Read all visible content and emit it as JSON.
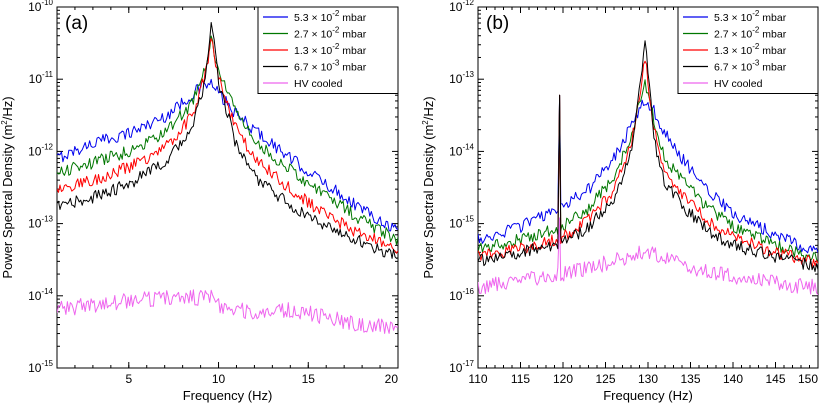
{
  "chart_data": [
    {
      "type": "line",
      "panel_label": "(a)",
      "xlabel": "Frequency (Hz)",
      "ylabel_text": "Power Spectral Density",
      "ylabel_unit": "(m",
      "ylabel_unit_sup": "2",
      "ylabel_unit_tail": "/Hz)",
      "xscale": "linear",
      "yscale": "log",
      "xlim": [
        1,
        20
      ],
      "ylim_exp": [
        -15,
        -10
      ],
      "x_ticks": [
        5,
        10,
        15,
        20
      ],
      "y_ticks_exp": [
        -15,
        -14,
        -13,
        -12,
        -11,
        -10
      ],
      "tick_base": "10",
      "legend_position": "top-right",
      "series": [
        {
          "name": "5.3 × 10^-2 mbar",
          "label_base": "5.3 × 10",
          "label_exp": "-2",
          "label_unit": " mbar",
          "color": "#0000ee",
          "anchors": [
            [
              1,
              8e-13
            ],
            [
              3,
              1.3e-12
            ],
            [
              5,
              1.8e-12
            ],
            [
              7,
              3e-12
            ],
            [
              8.5,
              6e-12
            ],
            [
              9.2,
              8.5e-12
            ],
            [
              9.6,
              8.5e-12
            ],
            [
              10.2,
              5.5e-12
            ],
            [
              11,
              3.2e-12
            ],
            [
              12,
              2e-12
            ],
            [
              14,
              8e-13
            ],
            [
              16,
              3.5e-13
            ],
            [
              18,
              1.6e-13
            ],
            [
              20,
              8e-14
            ]
          ]
        },
        {
          "name": "2.7 × 10^-2 mbar",
          "label_base": "2.7 × 10",
          "label_exp": "-2",
          "label_unit": " mbar",
          "color": "#007700",
          "anchors": [
            [
              1,
              5e-13
            ],
            [
              3,
              7e-13
            ],
            [
              5,
              1e-12
            ],
            [
              7,
              1.8e-12
            ],
            [
              8.5,
              4.5e-12
            ],
            [
              9.3,
              1.5e-11
            ],
            [
              9.6,
              3.5e-11
            ],
            [
              10.0,
              1.3e-11
            ],
            [
              11,
              3.5e-12
            ],
            [
              12,
              1.4e-12
            ],
            [
              14,
              5.5e-13
            ],
            [
              16,
              2.5e-13
            ],
            [
              18,
              1.1e-13
            ],
            [
              20,
              6e-14
            ]
          ]
        },
        {
          "name": "1.3 × 10^-2 mbar",
          "label_base": "1.3 × 10",
          "label_exp": "-2",
          "label_unit": " mbar",
          "color": "#ff0000",
          "anchors": [
            [
              1,
              3e-13
            ],
            [
              3,
              4e-13
            ],
            [
              5,
              6e-13
            ],
            [
              7,
              1.1e-12
            ],
            [
              8.5,
              3e-12
            ],
            [
              9.3,
              1.2e-11
            ],
            [
              9.6,
              3.8e-11
            ],
            [
              10.0,
              1e-11
            ],
            [
              11,
              2e-12
            ],
            [
              12,
              8e-13
            ],
            [
              14,
              3e-13
            ],
            [
              16,
              1.3e-13
            ],
            [
              18,
              7e-14
            ],
            [
              20,
              4.5e-14
            ]
          ]
        },
        {
          "name": "6.7 × 10^-3 mbar",
          "label_base": "6.7 × 10",
          "label_exp": "-3",
          "label_unit": " mbar",
          "color": "#000000",
          "anchors": [
            [
              1,
              1.7e-13
            ],
            [
              3,
              2.3e-13
            ],
            [
              5,
              3.5e-13
            ],
            [
              7,
              7e-13
            ],
            [
              8.5,
              2e-12
            ],
            [
              9.3,
              1e-11
            ],
            [
              9.6,
              7.5e-11
            ],
            [
              10.0,
              9e-12
            ],
            [
              11,
              1.2e-12
            ],
            [
              12,
              4.5e-13
            ],
            [
              14,
              1.8e-13
            ],
            [
              16,
              9e-14
            ],
            [
              18,
              5.5e-14
            ],
            [
              20,
              3.5e-14
            ]
          ]
        },
        {
          "name": "HV cooled",
          "label_base": "HV cooled",
          "label_exp": "",
          "label_unit": "",
          "color": "#ee66ee",
          "anchors": [
            [
              1,
              6.5e-15
            ],
            [
              3,
              7.5e-15
            ],
            [
              5,
              8.5e-15
            ],
            [
              7,
              9.5e-15
            ],
            [
              9.8,
              9.5e-15
            ],
            [
              10.2,
              6.5e-15
            ],
            [
              12,
              6e-15
            ],
            [
              14,
              6.5e-15
            ],
            [
              16,
              5e-15
            ],
            [
              18,
              4e-15
            ],
            [
              20,
              3.5e-15
            ]
          ]
        }
      ]
    },
    {
      "type": "line",
      "panel_label": "(b)",
      "xlabel": "Frequency (Hz)",
      "ylabel_text": "Power Spectral Density",
      "ylabel_unit": "(m",
      "ylabel_unit_sup": "2",
      "ylabel_unit_tail": "/Hz)",
      "xscale": "linear",
      "yscale": "log",
      "xlim": [
        110,
        150
      ],
      "ylim_exp": [
        -17,
        -12
      ],
      "x_ticks": [
        110,
        115,
        120,
        125,
        130,
        135,
        140,
        145,
        150
      ],
      "y_ticks_exp": [
        -17,
        -16,
        -15,
        -14,
        -13,
        -12
      ],
      "tick_base": "10",
      "legend_position": "top-right",
      "spike_x": 119.6,
      "spike_peak": 6e-14,
      "series": [
        {
          "name": "5.3 × 10^-2 mbar",
          "label_base": "5.3 × 10",
          "label_exp": "-2",
          "label_unit": " mbar",
          "color": "#0000ee",
          "anchors": [
            [
              110,
              6e-16
            ],
            [
              115,
              9e-16
            ],
            [
              120,
              1.7e-15
            ],
            [
              123,
              3e-15
            ],
            [
              126,
              8e-15
            ],
            [
              128,
              2.2e-14
            ],
            [
              129.5,
              5e-14
            ],
            [
              130.5,
              4e-14
            ],
            [
              132,
              1.8e-14
            ],
            [
              134,
              8e-15
            ],
            [
              137,
              3e-15
            ],
            [
              140,
              1.4e-15
            ],
            [
              145,
              7e-16
            ],
            [
              150,
              4e-16
            ]
          ]
        },
        {
          "name": "2.7 × 10^-2 mbar",
          "label_base": "2.7 × 10",
          "label_exp": "-2",
          "label_unit": " mbar",
          "color": "#007700",
          "anchors": [
            [
              110,
              4.5e-16
            ],
            [
              115,
              6e-16
            ],
            [
              120,
              9e-16
            ],
            [
              123,
              1.6e-15
            ],
            [
              126,
              4.5e-15
            ],
            [
              128,
              1.6e-14
            ],
            [
              129.6,
              9e-14
            ],
            [
              130.6,
              3e-14
            ],
            [
              132,
              8e-15
            ],
            [
              134,
              4e-15
            ],
            [
              137,
              1.7e-15
            ],
            [
              140,
              9e-16
            ],
            [
              145,
              5e-16
            ],
            [
              150,
              3.2e-16
            ]
          ]
        },
        {
          "name": "1.3 × 10^-2 mbar",
          "label_base": "1.3 × 10",
          "label_exp": "-2",
          "label_unit": " mbar",
          "color": "#ff0000",
          "anchors": [
            [
              110,
              3.5e-16
            ],
            [
              115,
              4.5e-16
            ],
            [
              120,
              6.5e-16
            ],
            [
              123,
              1.1e-15
            ],
            [
              126,
              3e-15
            ],
            [
              128,
              1.2e-14
            ],
            [
              129.7,
              1.9e-13
            ],
            [
              130.7,
              2e-14
            ],
            [
              132,
              5e-15
            ],
            [
              134,
              2.5e-15
            ],
            [
              137,
              1.1e-15
            ],
            [
              140,
              6.5e-16
            ],
            [
              145,
              4e-16
            ],
            [
              150,
              2.8e-16
            ]
          ]
        },
        {
          "name": "6.7 × 10^-3 mbar",
          "label_base": "6.7 × 10",
          "label_exp": "-3",
          "label_unit": " mbar",
          "color": "#000000",
          "anchors": [
            [
              110,
              3e-16
            ],
            [
              115,
              4e-16
            ],
            [
              120,
              5.5e-16
            ],
            [
              123,
              9e-16
            ],
            [
              126,
              2.2e-15
            ],
            [
              128,
              9e-15
            ],
            [
              129.7,
              3.5e-13
            ],
            [
              130.7,
              1.5e-14
            ],
            [
              132,
              3.5e-15
            ],
            [
              134,
              1.8e-15
            ],
            [
              137,
              8e-16
            ],
            [
              140,
              5e-16
            ],
            [
              145,
              3.5e-16
            ],
            [
              150,
              2.5e-16
            ]
          ]
        },
        {
          "name": "HV cooled",
          "label_base": "HV cooled",
          "label_exp": "",
          "label_unit": "",
          "color": "#ee66ee",
          "anchors": [
            [
              110,
              1.3e-16
            ],
            [
              115,
              1.6e-16
            ],
            [
              120,
              2e-16
            ],
            [
              125,
              2.8e-16
            ],
            [
              129,
              4e-16
            ],
            [
              131,
              3.6e-16
            ],
            [
              135,
              2.5e-16
            ],
            [
              140,
              1.8e-16
            ],
            [
              145,
              1.5e-16
            ],
            [
              150,
              1.3e-16
            ]
          ]
        }
      ]
    }
  ]
}
